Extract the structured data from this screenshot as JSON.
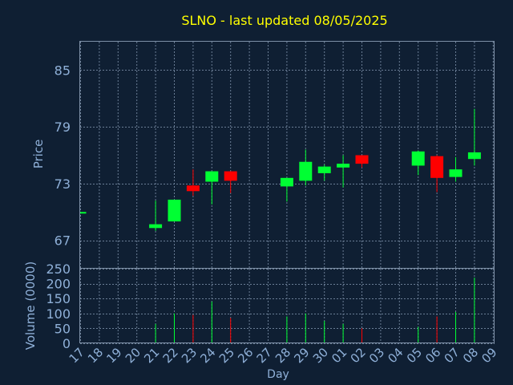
{
  "title": "SLNO - last updated 08/05/2025",
  "colors": {
    "background": "#0f1f33",
    "up": "#00ff33",
    "down": "#ff0000",
    "title": "#ffff00",
    "axis_text": "#8fb0d8",
    "grid": "#6a7d95"
  },
  "chart_data": {
    "type": "candlestick",
    "title": "SLNO - last updated 08/05/2025",
    "xlabel": "Day",
    "price_axis": {
      "label": "Price",
      "ticks": [
        67,
        73,
        79,
        85
      ],
      "ylim": [
        64.0,
        88.0
      ]
    },
    "volume_axis": {
      "label": "Volume (0000)",
      "ticks": [
        0,
        50,
        100,
        150,
        200,
        250
      ],
      "ylim": [
        0,
        250
      ]
    },
    "x_labels": [
      "17",
      "18",
      "19",
      "20",
      "21",
      "22",
      "23",
      "24",
      "25",
      "26",
      "27",
      "28",
      "29",
      "30",
      "01",
      "02",
      "03",
      "04",
      "05",
      "06",
      "07",
      "08",
      "09"
    ],
    "grid": true,
    "candles": [
      {
        "day": "17",
        "open": 70.0,
        "high": 70.0,
        "low": 70.0,
        "close": 70.0,
        "volume": 0
      },
      {
        "day": "21",
        "open": 68.3,
        "high": 71.2,
        "low": 68.0,
        "close": 68.7,
        "volume": 65
      },
      {
        "day": "22",
        "open": 69.0,
        "high": 71.3,
        "low": 69.0,
        "close": 71.3,
        "volume": 100
      },
      {
        "day": "23",
        "open": 72.8,
        "high": 74.5,
        "low": 71.7,
        "close": 72.2,
        "volume": 95
      },
      {
        "day": "24",
        "open": 73.2,
        "high": 74.3,
        "low": 70.8,
        "close": 74.3,
        "volume": 140
      },
      {
        "day": "25",
        "open": 74.3,
        "high": 74.3,
        "low": 72.0,
        "close": 73.3,
        "volume": 85
      },
      {
        "day": "28",
        "open": 72.7,
        "high": 73.6,
        "low": 71.1,
        "close": 73.6,
        "volume": 90
      },
      {
        "day": "29",
        "open": 73.3,
        "high": 76.6,
        "low": 72.8,
        "close": 75.3,
        "volume": 100
      },
      {
        "day": "30",
        "open": 74.1,
        "high": 75.0,
        "low": 73.3,
        "close": 74.8,
        "volume": 75
      },
      {
        "day": "01",
        "open": 74.7,
        "high": 76.0,
        "low": 72.6,
        "close": 75.1,
        "volume": 65
      },
      {
        "day": "02",
        "open": 76.0,
        "high": 76.0,
        "low": 74.7,
        "close": 75.1,
        "volume": 50
      },
      {
        "day": "05",
        "open": 74.9,
        "high": 76.5,
        "low": 73.9,
        "close": 76.4,
        "volume": 55
      },
      {
        "day": "06",
        "open": 75.9,
        "high": 76.0,
        "low": 72.1,
        "close": 73.6,
        "volume": 90
      },
      {
        "day": "07",
        "open": 73.7,
        "high": 75.8,
        "low": 73.2,
        "close": 74.5,
        "volume": 105
      },
      {
        "day": "08",
        "open": 75.6,
        "high": 80.9,
        "low": 74.9,
        "close": 76.3,
        "volume": 220
      }
    ]
  }
}
